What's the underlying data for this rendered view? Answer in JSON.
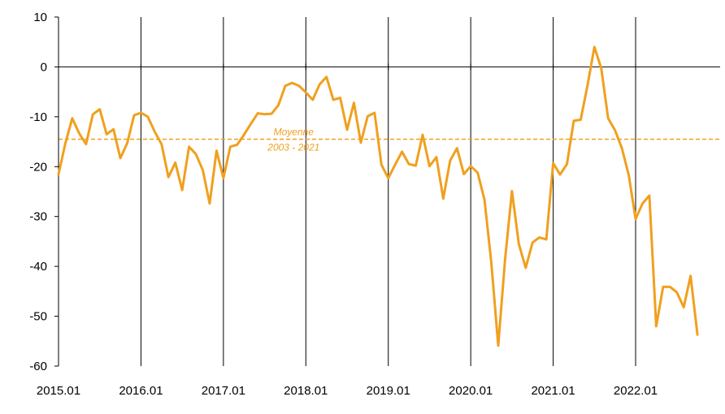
{
  "chart_data": {
    "type": "line",
    "title": "",
    "xlabel": "",
    "ylabel": "",
    "ylim": [
      -60,
      10
    ],
    "yticks": [
      10,
      0,
      -10,
      -20,
      -30,
      -40,
      -50,
      -60
    ],
    "xlim": [
      "2015.01",
      "2022.10"
    ],
    "xticks": [
      "2015.01",
      "2016.01",
      "2017.01",
      "2018.01",
      "2019.01",
      "2020.01",
      "2021.01",
      "2022.01"
    ],
    "grid": "vertical lines at each year",
    "line_color": "#F0A01E",
    "reference_line": {
      "value": -14.5,
      "label_line1": "Moyenne",
      "label_line2": "2003 - 2021",
      "style": "dashed",
      "color": "#F0A01E"
    },
    "series": [
      {
        "values": [
          -21.5,
          -15.3,
          -10.3,
          -13.3,
          -15.5,
          -9.5,
          -8.5,
          -13.5,
          -12.5,
          -18.3,
          -15.3,
          -9.7,
          -9.2,
          -10.0,
          -13.0,
          -15.5,
          -22.1,
          -19.2,
          -24.7,
          -16.0,
          -17.5,
          -20.7,
          -27.4,
          -16.8,
          -22.3,
          -16.0,
          -15.6,
          -13.6,
          -11.4,
          -9.3,
          -9.5,
          -9.4,
          -7.7,
          -3.8,
          -3.2,
          -3.8,
          -5.1,
          -6.6,
          -3.5,
          -2.0,
          -6.6,
          -6.2,
          -12.6,
          -7.2,
          -15.2,
          -9.9,
          -9.2,
          -19.6,
          -22.3,
          -19.6,
          -17.0,
          -19.5,
          -19.8,
          -13.6,
          -19.9,
          -18.1,
          -26.4,
          -18.8,
          -16.3,
          -21.5,
          -19.9,
          -21.2,
          -26.6,
          -39.3,
          -55.9,
          -38.6,
          -24.9,
          -35.5,
          -40.3,
          -35.2,
          -34.2,
          -34.6,
          -19.3,
          -21.6,
          -19.5,
          -10.8,
          -10.6,
          -3.7,
          4.0,
          -0.3,
          -10.3,
          -12.7,
          -16.3,
          -21.7,
          -30.5,
          -27.4,
          -25.8,
          -52.0,
          -44.1,
          -44.1,
          -45.2,
          -48.2,
          -41.9,
          -53.7
        ]
      }
    ]
  }
}
